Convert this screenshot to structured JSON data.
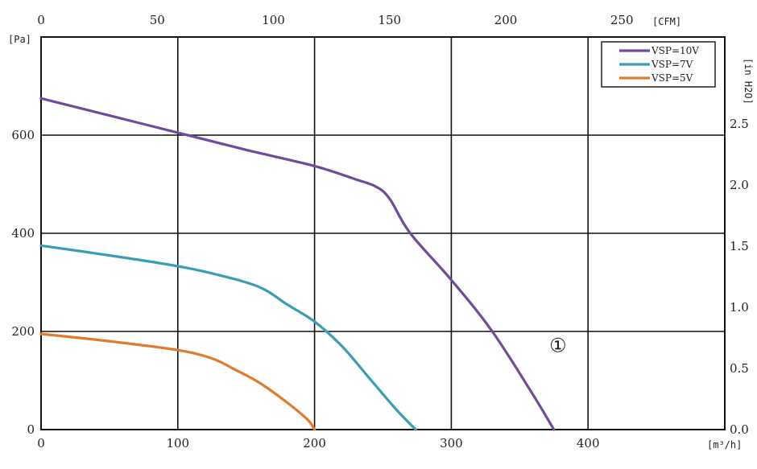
{
  "chart_data": {
    "type": "line",
    "x_unit_bottom": "[m³/h]",
    "x_unit_top": "[CFM]",
    "y_unit_left": "[Pa]",
    "y_unit_right": "[in H2O]",
    "xlim": [
      0,
      500
    ],
    "ylim": [
      0,
      800
    ],
    "x_ticks": [
      0,
      100,
      200,
      300,
      400
    ],
    "y_ticks": [
      0,
      200,
      400,
      600
    ],
    "x_top_ticks": [
      0,
      50,
      100,
      150,
      200,
      250
    ],
    "y_right_ticks": [
      "0.0",
      "0.5",
      "1.0",
      "1.5",
      "2.0",
      "2.5"
    ],
    "y_right_tick_values": [
      0.0,
      0.5,
      1.0,
      1.5,
      2.0,
      2.5
    ],
    "grid": true,
    "legend_position": "top-right",
    "series": [
      {
        "name": "VSP=10V",
        "color": "#6f4b9a",
        "x": [
          0,
          50,
          100,
          150,
          200,
          230,
          245,
          255,
          270,
          300,
          330,
          360,
          375
        ],
        "y": [
          675,
          640,
          605,
          570,
          537,
          510,
          495,
          470,
          400,
          305,
          200,
          70,
          0
        ]
      },
      {
        "name": "VSP=7V",
        "color": "#3a9db3",
        "x": [
          0,
          50,
          100,
          130,
          160,
          180,
          200,
          220,
          240,
          260,
          274
        ],
        "y": [
          375,
          355,
          333,
          315,
          290,
          255,
          220,
          170,
          105,
          40,
          0
        ]
      },
      {
        "name": "VSP=5V",
        "color": "#e07b2e",
        "x": [
          0,
          50,
          100,
          125,
          140,
          160,
          180,
          195,
          200
        ],
        "y": [
          195,
          180,
          162,
          145,
          125,
          95,
          55,
          20,
          0
        ]
      }
    ],
    "annotations": [
      {
        "text": "①",
        "x": 378,
        "y": 158
      }
    ]
  }
}
